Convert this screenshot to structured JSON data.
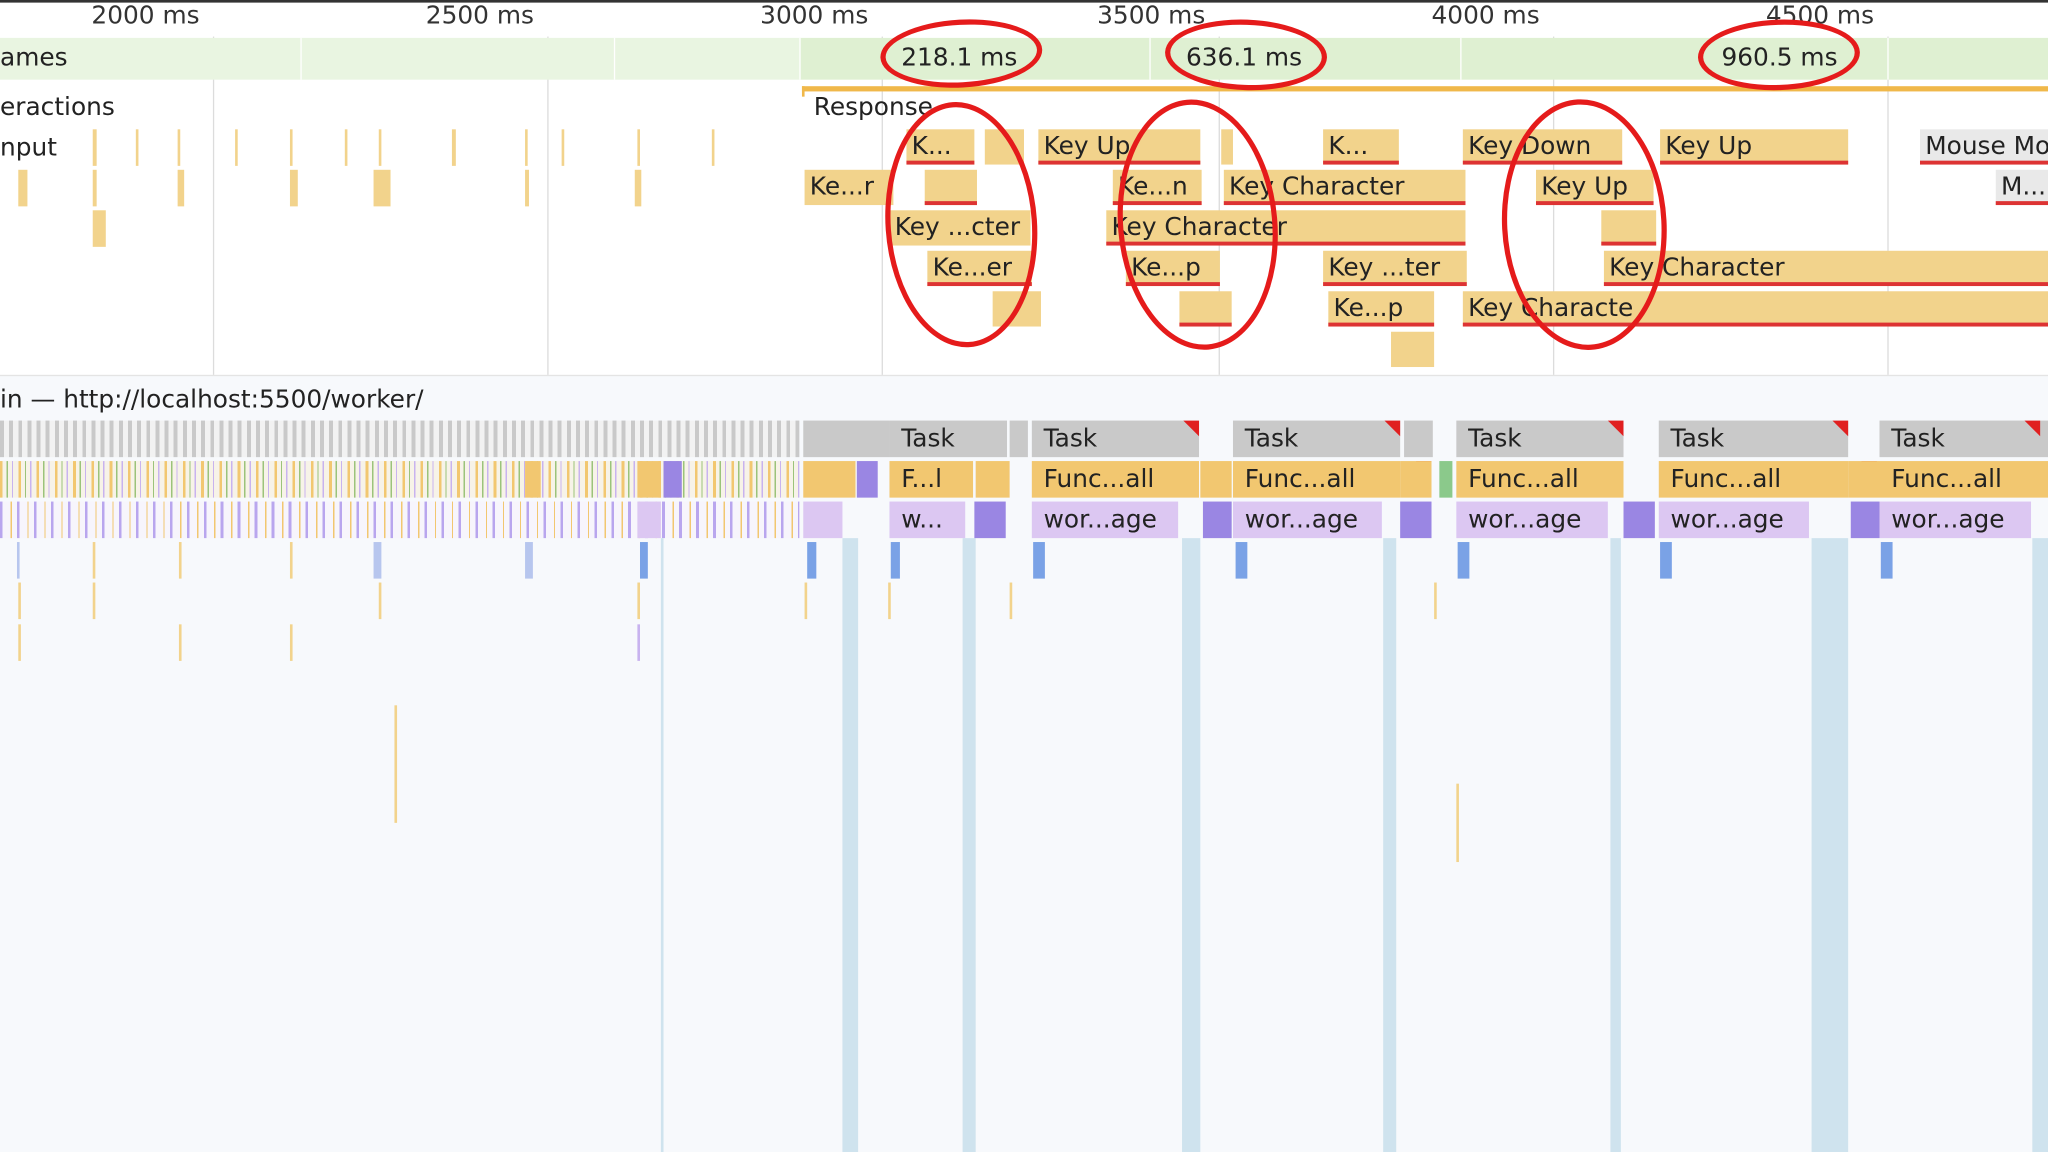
{
  "ruler": {
    "ticks": [
      "2000 ms",
      "2500 ms",
      "3000 ms",
      "3500 ms",
      "4000 ms",
      "4500 ms"
    ]
  },
  "tracks": {
    "frames_label": "ames",
    "interactions_label": "eractions",
    "input_label": "nput",
    "main_thread_label": "in — http://localhost:5500/worker/"
  },
  "frames": {
    "durations": [
      "218.1 ms",
      "636.1 ms",
      "960.5 ms"
    ]
  },
  "interactions": {
    "response_label": "Response"
  },
  "input_events": {
    "row1": [
      "K...",
      "Key Up",
      "K...",
      "Key Down",
      "Key Up",
      "Mouse Mo"
    ],
    "row2": [
      "Ke...r",
      "Ke...n",
      "Key Character",
      "Key Up",
      "M..."
    ],
    "row3": [
      "Key ...cter",
      "Key Character"
    ],
    "row4": [
      "Ke...er",
      "Ke...p",
      "Key ...ter",
      "Key Character"
    ],
    "row5": [
      "Ke...p",
      "Key Characte"
    ]
  },
  "main": {
    "tasks": [
      "Task",
      "Task",
      "Task",
      "Task",
      "Task",
      "Task"
    ],
    "funcs": [
      "F...l",
      "Func...all",
      "Func...all",
      "Func...all",
      "Func...all",
      "Func...all"
    ],
    "workers": [
      "w...",
      "wor...age",
      "wor...age",
      "wor...age",
      "wor...age",
      "wor...age"
    ]
  },
  "colors": {
    "frames": "#dff0d2",
    "input_event": "#f2d38c",
    "task": "#c9c9c9",
    "function_call": "#f2c770",
    "worker_message": "#dcc7f2",
    "annotation": "#e51b1b"
  }
}
